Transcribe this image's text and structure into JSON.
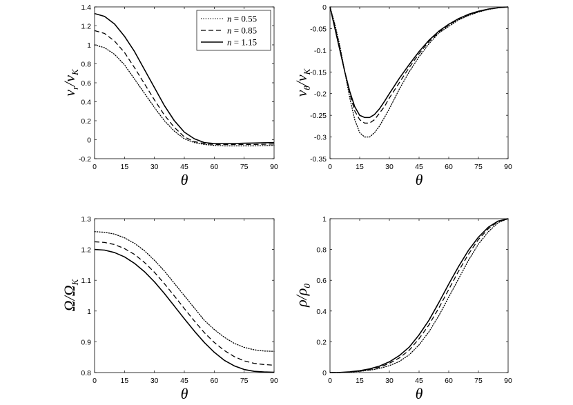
{
  "chart_data": [
    {
      "type": "line",
      "panel": "top-left",
      "xlabel": "θ",
      "ylabel": {
        "main": "v",
        "sub_top": "r",
        "main2": "v",
        "sub_bottom": "K"
      },
      "xlim": [
        0,
        90
      ],
      "ylim": [
        -0.2,
        1.4
      ],
      "xticks": [
        0,
        15,
        30,
        45,
        60,
        75,
        90
      ],
      "yticks": [
        -0.2,
        0,
        0.2,
        0.4,
        0.6,
        0.8,
        1,
        1.2,
        1.4
      ],
      "ytick_labels": [
        "-0.2",
        "0",
        "0.2",
        "0.4",
        "0.6",
        "0.8",
        "1",
        "1.2",
        "1.4"
      ],
      "legend": {
        "position": "top-right",
        "entries": [
          "n = 0.55",
          "n = 0.85",
          "n = 1.15"
        ]
      },
      "x": [
        0,
        5,
        10,
        15,
        20,
        25,
        30,
        35,
        40,
        45,
        50,
        55,
        60,
        65,
        70,
        75,
        80,
        85,
        90
      ],
      "series": [
        {
          "name": "n = 0.55",
          "style": "dotted",
          "values": [
            1.0,
            0.97,
            0.9,
            0.79,
            0.64,
            0.49,
            0.34,
            0.2,
            0.09,
            0.01,
            -0.03,
            -0.05,
            -0.06,
            -0.065,
            -0.065,
            -0.065,
            -0.065,
            -0.063,
            -0.06
          ]
        },
        {
          "name": "n = 0.85",
          "style": "dashed",
          "values": [
            1.15,
            1.12,
            1.04,
            0.92,
            0.76,
            0.59,
            0.42,
            0.26,
            0.13,
            0.03,
            -0.02,
            -0.04,
            -0.05,
            -0.05,
            -0.05,
            -0.05,
            -0.05,
            -0.048,
            -0.045
          ]
        },
        {
          "name": "n = 1.15",
          "style": "solid",
          "values": [
            1.33,
            1.3,
            1.22,
            1.09,
            0.93,
            0.74,
            0.55,
            0.36,
            0.2,
            0.08,
            0.01,
            -0.03,
            -0.04,
            -0.04,
            -0.04,
            -0.037,
            -0.035,
            -0.032,
            -0.03
          ]
        }
      ]
    },
    {
      "type": "line",
      "panel": "top-right",
      "xlabel": "θ",
      "ylabel": {
        "main": "v",
        "sub_top": "θ",
        "main2": "v",
        "sub_bottom": "K"
      },
      "xlim": [
        0,
        90
      ],
      "ylim": [
        -0.35,
        0
      ],
      "xticks": [
        0,
        15,
        30,
        45,
        60,
        75,
        90
      ],
      "yticks": [
        -0.35,
        -0.3,
        -0.25,
        -0.2,
        -0.15,
        -0.1,
        -0.05,
        0
      ],
      "ytick_labels": [
        "-0.35",
        "-0.3",
        "-0.25",
        "-0.2",
        "-0.15",
        "-0.1",
        "-0.05",
        "0"
      ],
      "x": [
        0,
        2.5,
        5,
        7.5,
        10,
        12.5,
        15,
        17.5,
        20,
        22.5,
        25,
        27.5,
        30,
        35,
        40,
        45,
        50,
        55,
        60,
        65,
        70,
        75,
        80,
        85,
        90
      ],
      "series": [
        {
          "name": "n = 0.55",
          "style": "dotted",
          "values": [
            0,
            -0.04,
            -0.09,
            -0.15,
            -0.21,
            -0.26,
            -0.29,
            -0.3,
            -0.3,
            -0.29,
            -0.275,
            -0.255,
            -0.235,
            -0.19,
            -0.15,
            -0.115,
            -0.085,
            -0.06,
            -0.045,
            -0.03,
            -0.02,
            -0.012,
            -0.006,
            -0.002,
            0
          ]
        },
        {
          "name": "n = 0.85",
          "style": "dashed",
          "values": [
            0,
            -0.045,
            -0.095,
            -0.15,
            -0.2,
            -0.24,
            -0.26,
            -0.268,
            -0.268,
            -0.26,
            -0.245,
            -0.23,
            -0.21,
            -0.175,
            -0.14,
            -0.108,
            -0.08,
            -0.058,
            -0.042,
            -0.028,
            -0.018,
            -0.011,
            -0.005,
            -0.002,
            0
          ]
        },
        {
          "name": "n = 1.15",
          "style": "solid",
          "values": [
            0,
            -0.05,
            -0.1,
            -0.15,
            -0.195,
            -0.23,
            -0.25,
            -0.255,
            -0.255,
            -0.248,
            -0.235,
            -0.218,
            -0.2,
            -0.165,
            -0.133,
            -0.103,
            -0.077,
            -0.056,
            -0.04,
            -0.027,
            -0.017,
            -0.01,
            -0.005,
            -0.002,
            0
          ]
        }
      ]
    },
    {
      "type": "line",
      "panel": "bottom-left",
      "xlabel": "θ",
      "ylabel": {
        "main": "Ω",
        "sub_top": "",
        "main2": "Ω",
        "sub_bottom": "K"
      },
      "xlim": [
        0,
        90
      ],
      "ylim": [
        0.8,
        1.3
      ],
      "xticks": [
        0,
        15,
        30,
        45,
        60,
        75,
        90
      ],
      "yticks": [
        0.8,
        0.9,
        1,
        1.1,
        1.2,
        1.3
      ],
      "ytick_labels": [
        "0.8",
        "0.9",
        "1",
        "1.1",
        "1.2",
        "1.3"
      ],
      "x": [
        0,
        5,
        10,
        15,
        20,
        25,
        30,
        35,
        40,
        45,
        50,
        55,
        60,
        65,
        70,
        75,
        80,
        85,
        90
      ],
      "series": [
        {
          "name": "n = 0.55",
          "style": "dotted",
          "values": [
            1.258,
            1.256,
            1.25,
            1.238,
            1.22,
            1.196,
            1.165,
            1.13,
            1.09,
            1.05,
            1.01,
            0.97,
            0.94,
            0.915,
            0.895,
            0.882,
            0.874,
            0.87,
            0.869
          ]
        },
        {
          "name": "n = 0.85",
          "style": "dashed",
          "values": [
            1.225,
            1.223,
            1.216,
            1.203,
            1.184,
            1.158,
            1.126,
            1.089,
            1.049,
            1.008,
            0.968,
            0.93,
            0.898,
            0.872,
            0.852,
            0.838,
            0.83,
            0.826,
            0.824
          ]
        },
        {
          "name": "n = 1.15",
          "style": "solid",
          "values": [
            1.2,
            1.198,
            1.19,
            1.176,
            1.155,
            1.128,
            1.095,
            1.057,
            1.016,
            0.975,
            0.935,
            0.898,
            0.866,
            0.84,
            0.822,
            0.81,
            0.804,
            0.802,
            0.801
          ]
        }
      ]
    },
    {
      "type": "line",
      "panel": "bottom-right",
      "xlabel": "θ",
      "ylabel": {
        "main": "ρ",
        "sub_top": "",
        "main2": "ρ",
        "sub_bottom": "0"
      },
      "xlim": [
        0,
        90
      ],
      "ylim": [
        0,
        1
      ],
      "xticks": [
        0,
        15,
        30,
        45,
        60,
        75,
        90
      ],
      "yticks": [
        0,
        0.2,
        0.4,
        0.6,
        0.8,
        1
      ],
      "ytick_labels": [
        "0",
        "0.2",
        "0.4",
        "0.6",
        "0.8",
        "1"
      ],
      "x": [
        0,
        5,
        10,
        15,
        20,
        25,
        30,
        35,
        40,
        45,
        50,
        55,
        60,
        65,
        70,
        75,
        80,
        85,
        90
      ],
      "series": [
        {
          "name": "n = 0.55",
          "style": "dotted",
          "values": [
            0,
            0,
            0.003,
            0.008,
            0.015,
            0.027,
            0.045,
            0.072,
            0.115,
            0.18,
            0.265,
            0.37,
            0.49,
            0.61,
            0.73,
            0.835,
            0.915,
            0.975,
            1.0
          ]
        },
        {
          "name": "n = 0.85",
          "style": "dashed",
          "values": [
            0,
            0.001,
            0.004,
            0.01,
            0.02,
            0.035,
            0.06,
            0.095,
            0.145,
            0.22,
            0.31,
            0.42,
            0.54,
            0.66,
            0.77,
            0.865,
            0.935,
            0.982,
            1.0
          ]
        },
        {
          "name": "n = 1.15",
          "style": "solid",
          "values": [
            0,
            0.001,
            0.005,
            0.012,
            0.024,
            0.042,
            0.07,
            0.11,
            0.165,
            0.245,
            0.34,
            0.455,
            0.575,
            0.69,
            0.795,
            0.88,
            0.945,
            0.985,
            1.0
          ]
        }
      ]
    }
  ]
}
